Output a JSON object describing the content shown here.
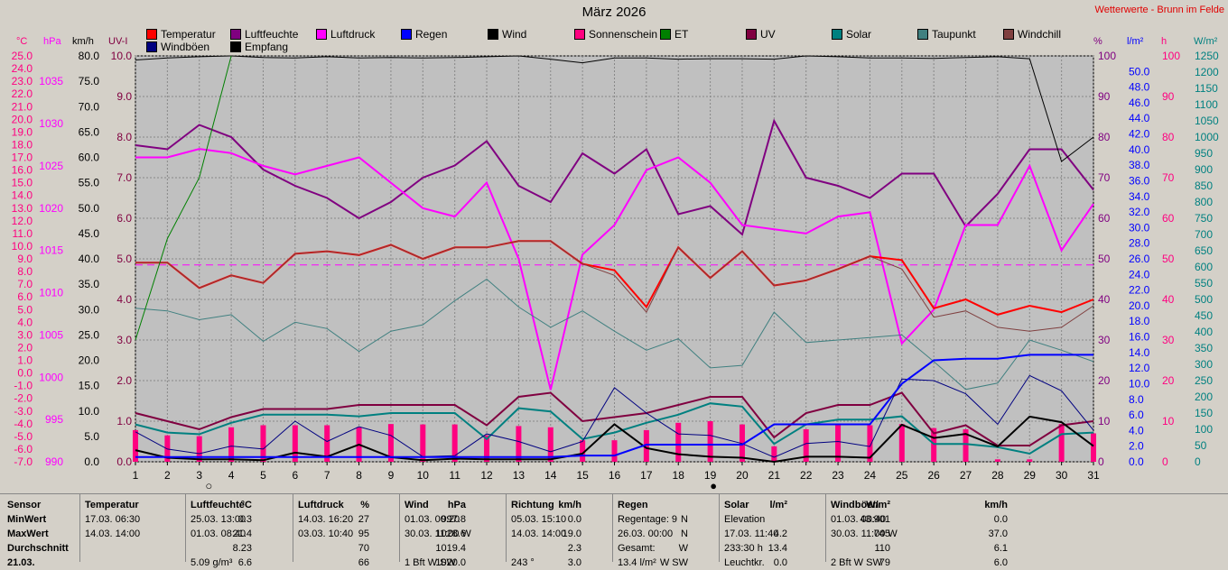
{
  "header": {
    "title": "März 2026",
    "station": "Wetterwerte - Brunn im Felde"
  },
  "legend": [
    {
      "label": "Temperatur",
      "color": "#ff0000"
    },
    {
      "label": "Luftfeuchte",
      "color": "#800080"
    },
    {
      "label": "Luftdruck",
      "color": "#ff00ff"
    },
    {
      "label": "Regen",
      "color": "#0000ff"
    },
    {
      "label": "Wind",
      "color": "#000000"
    },
    {
      "label": "Sonnenschein",
      "color": "#ff0080"
    },
    {
      "label": "ET",
      "color": "#008000"
    },
    {
      "label": "UV",
      "color": "#800040"
    },
    {
      "label": "Solar",
      "color": "#008080"
    },
    {
      "label": "Taupunkt",
      "color": "#408080"
    },
    {
      "label": "Windchill",
      "color": "#804040"
    },
    {
      "label": "Windböen",
      "color": "#000080"
    },
    {
      "label": "Empfang",
      "color": "#000000"
    }
  ],
  "axis_units": {
    "temp": "°C",
    "press": "hPa",
    "wind": "km/h",
    "uv": "UV-I",
    "hum": "%",
    "rain": "l/m²",
    "sun": "h",
    "solar": "W/m²"
  },
  "chart_data": {
    "type": "line",
    "title": "März 2026",
    "x": [
      1,
      2,
      3,
      4,
      5,
      6,
      7,
      8,
      9,
      10,
      11,
      12,
      13,
      14,
      15,
      16,
      17,
      18,
      19,
      20,
      21,
      22,
      23,
      24,
      25,
      26,
      27,
      28,
      29,
      30,
      31
    ],
    "axes": {
      "temperature": {
        "unit": "°C",
        "range": [
          -7.0,
          25.0
        ],
        "ticks": [
          "25.0",
          "24.0",
          "23.0",
          "22.0",
          "21.0",
          "20.0",
          "19.0",
          "18.0",
          "17.0",
          "16.0",
          "15.0",
          "14.0",
          "13.0",
          "12.0",
          "11.0",
          "10.0",
          "9.0",
          "8.0",
          "7.0",
          "6.0",
          "5.0",
          "4.0",
          "3.0",
          "2.0",
          "1.0",
          "0.0",
          "-1.0",
          "-2.0",
          "-3.0",
          "-4.0",
          "-5.0",
          "-6.0",
          "-7.0"
        ]
      },
      "pressure": {
        "unit": "hPa",
        "range": [
          990,
          1038
        ],
        "ticks": [
          "1035",
          "1030",
          "1025",
          "1020",
          "1015",
          "1010",
          "1005",
          "1000",
          "995",
          "990"
        ]
      },
      "wind": {
        "unit": "km/h",
        "range": [
          0,
          80
        ],
        "ticks": [
          "80.0",
          "75.0",
          "70.0",
          "65.0",
          "60.0",
          "55.0",
          "50.0",
          "45.0",
          "40.0",
          "35.0",
          "30.0",
          "25.0",
          "20.0",
          "15.0",
          "10.0",
          "5.0",
          "0.0"
        ]
      },
      "uv": {
        "unit": "UV-I",
        "range": [
          0,
          10
        ],
        "ticks": [
          "10.0",
          "9.0",
          "8.0",
          "7.0",
          "6.0",
          "5.0",
          "4.0",
          "3.0",
          "2.0",
          "1.0",
          "0.0"
        ]
      },
      "humidity": {
        "unit": "%",
        "range": [
          0,
          100
        ],
        "ticks": [
          "100",
          "90",
          "80",
          "70",
          "60",
          "50",
          "40",
          "30",
          "20",
          "10",
          "0"
        ]
      },
      "rain": {
        "unit": "l/m²",
        "range": [
          0,
          52
        ],
        "ticks": [
          "50.0",
          "48.0",
          "46.0",
          "44.0",
          "42.0",
          "40.0",
          "38.0",
          "36.0",
          "34.0",
          "32.0",
          "30.0",
          "28.0",
          "26.0",
          "24.0",
          "22.0",
          "20.0",
          "18.0",
          "16.0",
          "14.0",
          "12.0",
          "10.0",
          "8.0",
          "6.0",
          "4.0",
          "2.0",
          "0.0"
        ]
      },
      "sunshine": {
        "unit": "h",
        "range": [
          0,
          100
        ],
        "ticks": [
          "100",
          "90",
          "80",
          "70",
          "60",
          "50",
          "40",
          "30",
          "20",
          "10",
          "0"
        ]
      },
      "solar": {
        "unit": "W/m²",
        "range": [
          0,
          1250
        ],
        "ticks": [
          "1250",
          "1200",
          "1150",
          "1100",
          "1050",
          "1000",
          "950",
          "900",
          "850",
          "800",
          "750",
          "700",
          "650",
          "600",
          "550",
          "500",
          "450",
          "400",
          "350",
          "300",
          "250",
          "200",
          "150",
          "100",
          "50",
          "0"
        ]
      }
    },
    "reference_line": {
      "axis": "humidity",
      "value": 48.5
    },
    "series": [
      {
        "name": "Luftfeuchte",
        "axis": "humidity",
        "values": [
          78,
          77,
          83,
          80,
          72,
          68,
          65,
          60,
          64,
          70,
          73,
          79,
          68,
          64,
          76,
          71,
          77,
          61,
          63,
          56,
          84,
          70,
          68,
          65,
          71,
          71,
          58,
          66,
          77,
          77,
          67
        ]
      },
      {
        "name": "Luftdruck",
        "axis": "pressure",
        "values": [
          1026,
          1026,
          1027,
          1026.5,
          1025,
          1024,
          1025,
          1026,
          1023,
          1020,
          1019,
          1023,
          1014,
          998.5,
          1014.5,
          1018,
          1024.5,
          1026,
          1023,
          1018,
          1017.5,
          1017,
          1019,
          1019.5,
          1004,
          1008,
          1018,
          1018,
          1025,
          1015,
          1020.5
        ]
      },
      {
        "name": "Temperatur",
        "axis": "temperature",
        "values": [
          8.7,
          8.7,
          6.7,
          7.7,
          7.1,
          9.4,
          9.6,
          9.3,
          10.1,
          9.0,
          9.9,
          9.9,
          10.4,
          10.4,
          8.6,
          8.1,
          5.2,
          9.9,
          7.5,
          9.6,
          6.9,
          7.3,
          8.2,
          9.2,
          8.9,
          5.1,
          5.8,
          4.6,
          5.3,
          4.8,
          5.8
        ]
      },
      {
        "name": "Windchill",
        "axis": "temperature",
        "values": [
          8.7,
          8.7,
          6.7,
          7.7,
          7.1,
          9.4,
          9.6,
          9.3,
          10.1,
          9.0,
          9.9,
          9.9,
          10.4,
          10.4,
          8.6,
          7.7,
          4.8,
          9.9,
          7.5,
          9.6,
          6.9,
          7.3,
          8.2,
          9.2,
          8.2,
          4.4,
          4.9,
          3.6,
          3.3,
          3.6,
          5.3
        ]
      },
      {
        "name": "Taupunkt",
        "axis": "temperature",
        "values": [
          5.1,
          4.9,
          4.2,
          4.6,
          2.5,
          4.0,
          3.5,
          1.7,
          3.3,
          3.8,
          5.7,
          7.4,
          5.2,
          3.6,
          4.9,
          3.3,
          1.8,
          2.7,
          0.4,
          0.6,
          4.8,
          2.4,
          2.6,
          2.8,
          3.0,
          0.9,
          -1.3,
          -0.8,
          2.6,
          1.8,
          0.9
        ]
      },
      {
        "name": "Empfang",
        "axis": "humidity",
        "values": [
          99,
          99.5,
          99.8,
          100,
          99.6,
          99.5,
          99.8,
          99.5,
          99.6,
          99.5,
          99.6,
          99.8,
          100,
          99.2,
          98.3,
          99.5,
          99.5,
          99.2,
          99.3,
          99.3,
          99.2,
          100,
          99.8,
          99.5,
          99.5,
          99.4,
          99.6,
          99.8,
          99.3,
          74,
          80
        ]
      },
      {
        "name": "ET",
        "axis": "humidity",
        "values": [
          30,
          55,
          70,
          100,
          null,
          null,
          null,
          null,
          null,
          null,
          null,
          null,
          null,
          null,
          null,
          null,
          null,
          null,
          null,
          null,
          null,
          null,
          null,
          null,
          null,
          null,
          null,
          null,
          null,
          null,
          null
        ]
      },
      {
        "name": "UV",
        "axis": "uv",
        "values": [
          1.2,
          1.0,
          0.8,
          1.1,
          1.3,
          1.3,
          1.3,
          1.4,
          1.4,
          1.4,
          1.4,
          0.9,
          1.6,
          1.7,
          1.0,
          1.1,
          1.2,
          1.4,
          1.6,
          1.6,
          0.6,
          1.2,
          1.4,
          1.4,
          1.7,
          0.7,
          0.9,
          0.4,
          0.4,
          0.9,
          1.0
        ]
      },
      {
        "name": "Solar",
        "axis": "solar",
        "values": [
          115,
          90,
          85,
          120,
          145,
          145,
          145,
          140,
          150,
          150,
          150,
          70,
          165,
          155,
          70,
          90,
          120,
          145,
          180,
          170,
          55,
          115,
          130,
          130,
          140,
          55,
          55,
          45,
          25,
          85,
          90
        ]
      },
      {
        "name": "Wind",
        "axis": "wind",
        "values": [
          2.3,
          0.8,
          0.5,
          0.5,
          0.3,
          1.8,
          1.0,
          3.4,
          0.9,
          0.3,
          0.6,
          0.5,
          0.5,
          0.5,
          1.6,
          7.4,
          2.7,
          1.5,
          1.0,
          0.8,
          0.0,
          1.0,
          1.0,
          0.8,
          7.3,
          4.7,
          5.5,
          3.0,
          8.9,
          7.8,
          3.1
        ]
      },
      {
        "name": "Windböen",
        "axis": "wind",
        "values": [
          5.9,
          2.5,
          1.6,
          3.1,
          2.5,
          8.0,
          4.0,
          6.9,
          5.2,
          1.0,
          1.2,
          5.5,
          4.0,
          2.0,
          4.0,
          14.6,
          9.6,
          5.5,
          5.2,
          3.6,
          0.9,
          3.6,
          4.0,
          3.0,
          16.3,
          16.0,
          13.4,
          7.4,
          17.0,
          14.0,
          6.2
        ]
      },
      {
        "name": "Regen",
        "axis": "rain",
        "values": [
          0.6,
          0.6,
          0.6,
          0.6,
          0.6,
          0.6,
          0.6,
          0.6,
          0.6,
          0.6,
          0.6,
          0.6,
          0.6,
          0.6,
          0.8,
          0.8,
          2.2,
          2.2,
          2.2,
          2.2,
          4.8,
          4.8,
          4.8,
          4.8,
          10.0,
          13.0,
          13.2,
          13.2,
          13.7,
          13.7,
          13.7
        ]
      },
      {
        "name": "Sonnenschein",
        "axis": "sunshine",
        "values": [
          7.8,
          6.5,
          6.3,
          8.5,
          9.0,
          9.0,
          9.0,
          8.5,
          9.3,
          9.2,
          9.2,
          6.5,
          8.8,
          8.5,
          5.3,
          5.3,
          7.8,
          9.6,
          10.0,
          9.2,
          3.8,
          8.0,
          9.0,
          9.0,
          9.3,
          8.3,
          8.0,
          0.6,
          0.6,
          9.3,
          7.0
        ]
      }
    ],
    "markers": [
      {
        "x": 3.3,
        "symbol": "○"
      },
      {
        "x": 19.1,
        "symbol": "●"
      }
    ]
  },
  "stats": {
    "sensor": {
      "title": "Sensor",
      "rows": [
        "MinWert",
        "MaxWert",
        "Durchschnitt",
        "21.03."
      ]
    },
    "temperatur": {
      "title": "Temperatur",
      "unit": "°C",
      "rows": [
        [
          "17.03.  06:30",
          "0.3"
        ],
        [
          "14.03.  14:00",
          "21.4"
        ],
        [
          "",
          "8.23"
        ],
        [
          "",
          "6.6"
        ]
      ]
    },
    "luftfeuchte": {
      "title": "Luftfeuchte",
      "unit": "%",
      "rows": [
        [
          "25.03.  13:00",
          "27"
        ],
        [
          "01.03.  08:40",
          "95"
        ],
        [
          "",
          "70"
        ],
        [
          "5.09 g/m³",
          "66"
        ]
      ]
    },
    "luftdruck": {
      "title": "Luftdruck",
      "unit": "hPa",
      "rows": [
        [
          "14.03.  16:20",
          "997.8"
        ],
        [
          "03.03.  10:40",
          "1028.6"
        ],
        [
          "",
          "1019.4"
        ],
        [
          "",
          "1020.0"
        ]
      ]
    },
    "wind": {
      "title": "Wind",
      "unit": "km/h",
      "rows": [
        [
          "01.03.  00:20",
          "0.0"
        ],
        [
          "30.03.  11:00  W",
          "19.0"
        ],
        [
          "",
          "2.3"
        ],
        [
          "1 Bft W SW",
          "3.0"
        ]
      ]
    },
    "richtung": {
      "title": "Richtung",
      "unit": "",
      "rows": [
        [
          "05.03.  15:10",
          "N"
        ],
        [
          "14.03.  14:00",
          "N"
        ],
        [
          "",
          "W"
        ],
        [
          "243 °",
          "W SW"
        ]
      ]
    },
    "regen": {
      "title": "Regen",
      "unit": "l/m²",
      "rows": [
        [
          "Regentage: 9",
          ""
        ],
        [
          "26.03.  00:00",
          "4.2"
        ],
        [
          "Gesamt:",
          "13.4"
        ],
        [
          "13.4 l/m²",
          "0.0"
        ]
      ]
    },
    "solar": {
      "title": "Solar",
      "unit": "W/m²",
      "rows": [
        [
          "Elevation",
          "43.901"
        ],
        [
          "17.03.  11:40",
          "745"
        ],
        [
          "233:30 h",
          "110"
        ],
        [
          "Leuchtkr.",
          "79"
        ]
      ]
    },
    "windboeen": {
      "title": "Windböen",
      "unit": "km/h",
      "rows": [
        [
          "01.03.  00:40",
          "0.0"
        ],
        [
          "30.03.  11:00  W",
          "37.0"
        ],
        [
          "",
          "6.1"
        ],
        [
          "2 Bft W SW",
          "6.0"
        ]
      ]
    }
  }
}
